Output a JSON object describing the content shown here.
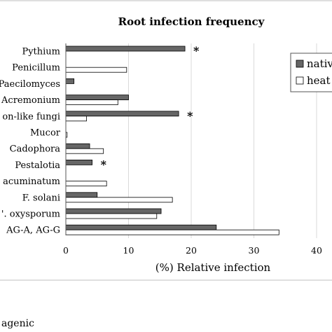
{
  "chart_data": {
    "type": "bar",
    "orientation": "horizontal",
    "title": "Root infection frequency",
    "xlabel": "(%) Relative infection",
    "ylabel": "",
    "xlim": [
      0,
      40
    ],
    "xticks": [
      0,
      10,
      20,
      30,
      40
    ],
    "grid": true,
    "legend_position": "top-right",
    "categories": [
      "Pythium",
      "Penicillum",
      "Paecilomyces",
      "Acremonium",
      "on-like fungi",
      "Mucor",
      "Cadophora",
      "Pestalotia",
      "acuminatum",
      "F. solani",
      "'. oxysporum",
      "AG-A, AG-G"
    ],
    "series": [
      {
        "name": "nativ",
        "color": "#666666",
        "values": [
          19.0,
          0,
          1.3,
          10.0,
          18.0,
          0,
          3.8,
          4.2,
          0,
          5.0,
          15.2,
          24.0
        ]
      },
      {
        "name": "heat",
        "color": "#ffffff",
        "values": [
          0,
          9.7,
          0,
          8.3,
          3.3,
          0.2,
          6.0,
          0,
          6.5,
          17.0,
          14.5,
          34.0
        ]
      }
    ],
    "significant": [
      {
        "category": "Pythium",
        "symbol": "*"
      },
      {
        "category": "on-like fungi",
        "symbol": "*"
      },
      {
        "category": "Pestalotia",
        "symbol": "*"
      }
    ]
  },
  "footnote": "agenic"
}
